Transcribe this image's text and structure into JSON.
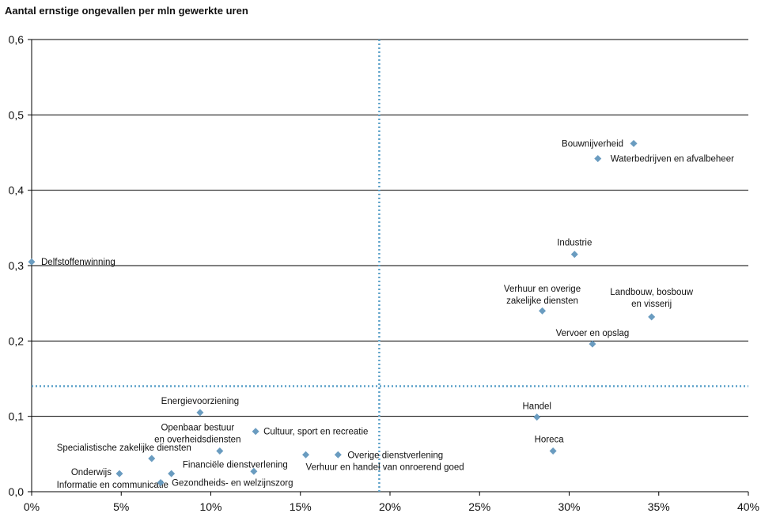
{
  "chart_data": {
    "type": "scatter",
    "title": "Aantal ernstige ongevallen per mln gewerkte uren",
    "xlim": [
      0,
      0.4
    ],
    "ylim": [
      0,
      0.6
    ],
    "x_ticks": [
      0,
      0.05,
      0.1,
      0.15,
      0.2,
      0.25,
      0.3,
      0.35,
      0.4
    ],
    "x_tick_labels": [
      "0%",
      "5%",
      "10%",
      "15%",
      "20%",
      "25%",
      "30%",
      "35%",
      "40%"
    ],
    "y_ticks": [
      0,
      0.1,
      0.2,
      0.3,
      0.4,
      0.5,
      0.6
    ],
    "y_tick_labels": [
      "0,0",
      "0,1",
      "0,2",
      "0,3",
      "0,4",
      "0,5",
      "0,6"
    ],
    "grid": "horizontal",
    "reference_lines": {
      "x": 0.194,
      "y": 0.14
    },
    "marker_color": "#6a9cc0",
    "reference_color": "#5aa0c8",
    "points": [
      {
        "label": "Delfstoffenwinning",
        "x": 0.0,
        "y": 0.305
      },
      {
        "label": "Bouwnijverheid",
        "x": 0.336,
        "y": 0.462
      },
      {
        "label": "Waterbedrijven en afvalbeheer",
        "x": 0.316,
        "y": 0.442
      },
      {
        "label": "Industrie",
        "x": 0.303,
        "y": 0.315
      },
      {
        "label": "Verhuur en overige zakelijke diensten",
        "x": 0.285,
        "y": 0.24
      },
      {
        "label": "Landbouw, bosbouw en visserij",
        "x": 0.346,
        "y": 0.232
      },
      {
        "label": "Vervoer en opslag",
        "x": 0.313,
        "y": 0.196
      },
      {
        "label": "Handel",
        "x": 0.282,
        "y": 0.099
      },
      {
        "label": "Horeca",
        "x": 0.291,
        "y": 0.054
      },
      {
        "label": "Energievoorziening",
        "x": 0.094,
        "y": 0.105
      },
      {
        "label": "Openbaar bestuur en overheidsdiensten",
        "x": 0.105,
        "y": 0.054
      },
      {
        "label": "Cultuur, sport en recreatie",
        "x": 0.125,
        "y": 0.08
      },
      {
        "label": "Specialistische zakelijke diensten",
        "x": 0.067,
        "y": 0.044
      },
      {
        "label": "Financiële dienstverlening",
        "x": 0.124,
        "y": 0.027
      },
      {
        "label": "Overige dienstverlening",
        "x": 0.171,
        "y": 0.049
      },
      {
        "label": "Verhuur en handel van onroerend goed",
        "x": 0.153,
        "y": 0.049
      },
      {
        "label": "Onderwijs",
        "x": 0.049,
        "y": 0.024
      },
      {
        "label": "Informatie en communicatie",
        "x": 0.078,
        "y": 0.024
      },
      {
        "label": "Gezondheids- en welzijnszorg",
        "x": 0.072,
        "y": 0.012
      }
    ]
  }
}
